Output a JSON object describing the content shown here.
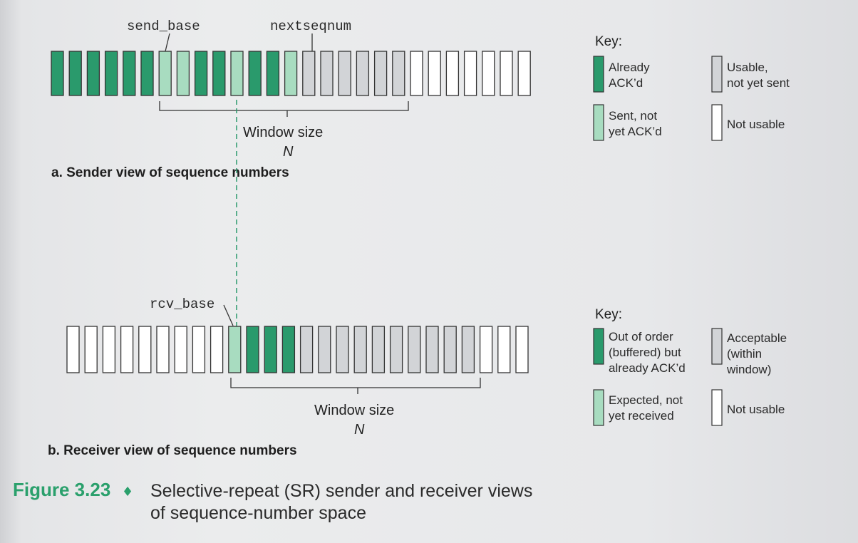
{
  "colors": {
    "acked": "#2a9a6c",
    "sent_not_acked": "#a8dcc0",
    "usable": "#d2d4d7",
    "not_usable": "#ffffff",
    "outline": "#333333",
    "figure_number": "#2aa06c"
  },
  "sender": {
    "states": [
      "acked",
      "acked",
      "acked",
      "acked",
      "acked",
      "acked",
      "sent",
      "sent",
      "acked",
      "acked",
      "sent",
      "acked",
      "acked",
      "sent",
      "usable",
      "usable",
      "usable",
      "usable",
      "usable",
      "usable",
      "not_usable",
      "not_usable",
      "not_usable",
      "not_usable",
      "not_usable",
      "not_usable",
      "not_usable"
    ],
    "send_base_label": "send_base",
    "nextseqnum_label": "nextseqnum",
    "window_label": "Window size",
    "window_var": "N",
    "caption": "a. Sender view of sequence numbers",
    "key": {
      "title": "Key:",
      "items": [
        {
          "state": "acked",
          "lines": [
            "Already",
            "ACK’d"
          ]
        },
        {
          "state": "usable",
          "lines": [
            "Usable,",
            "not yet sent"
          ]
        },
        {
          "state": "sent",
          "lines": [
            "Sent, not",
            "yet ACK’d"
          ]
        },
        {
          "state": "not_usable",
          "lines": [
            "Not usable"
          ]
        }
      ]
    }
  },
  "receiver": {
    "states": [
      "not_usable",
      "not_usable",
      "not_usable",
      "not_usable",
      "not_usable",
      "not_usable",
      "not_usable",
      "not_usable",
      "not_usable",
      "expected",
      "ooo",
      "ooo",
      "ooo",
      "acceptable",
      "acceptable",
      "acceptable",
      "acceptable",
      "acceptable",
      "acceptable",
      "acceptable",
      "acceptable",
      "acceptable",
      "acceptable",
      "not_usable",
      "not_usable",
      "not_usable"
    ],
    "rcv_base_label": "rcv_base",
    "window_label": "Window size",
    "window_var": "N",
    "caption": "b. Receiver view of sequence numbers",
    "key": {
      "title": "Key:",
      "items": [
        {
          "state": "ooo",
          "lines": [
            "Out of order",
            "(buffered) but",
            "already ACK’d"
          ]
        },
        {
          "state": "acceptable",
          "lines": [
            "Acceptable",
            "(within",
            "window)"
          ]
        },
        {
          "state": "expected",
          "lines": [
            "Expected, not",
            "yet received"
          ]
        },
        {
          "state": "not_usable",
          "lines": [
            "Not usable"
          ]
        }
      ]
    }
  },
  "figure": {
    "number": "Figure 3.23",
    "separator": "♦",
    "caption_line1": "Selective-repeat (SR) sender and receiver views",
    "caption_line2": "of sequence-number space"
  }
}
